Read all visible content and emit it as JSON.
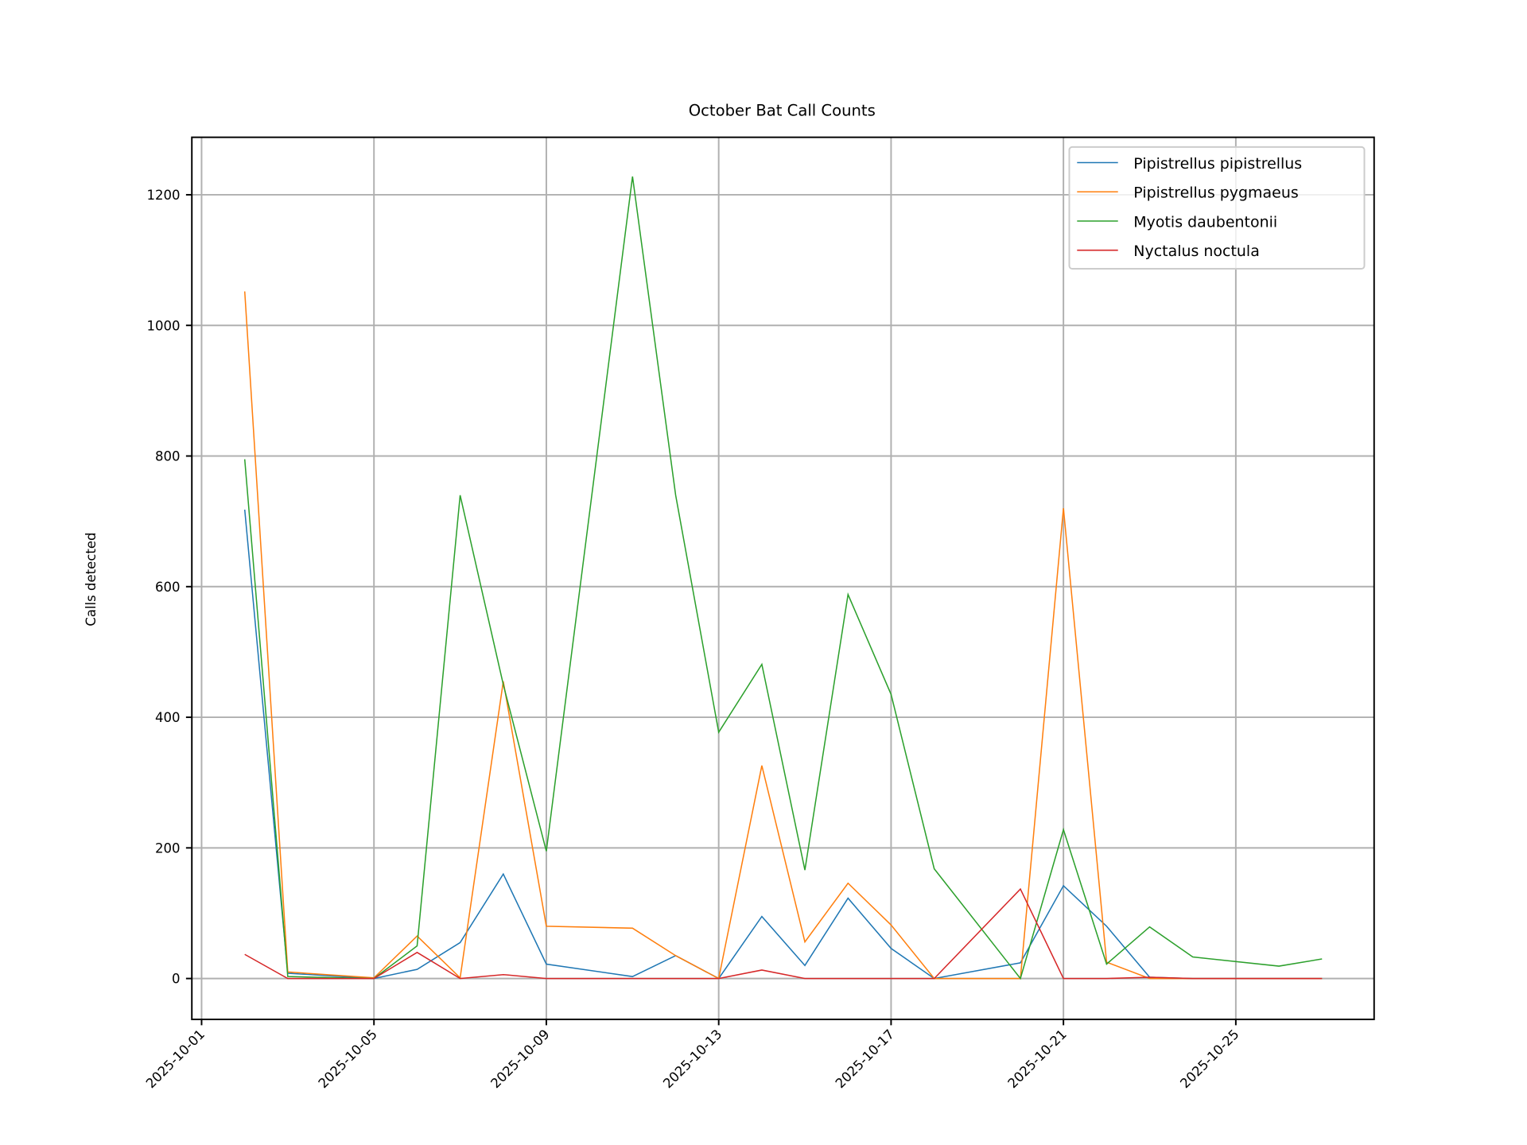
{
  "chart_data": {
    "type": "line",
    "title": "October Bat Call Counts",
    "xlabel": "",
    "ylabel": "Calls detected",
    "x": [
      "2025-10-02",
      "2025-10-03",
      "2025-10-05",
      "2025-10-06",
      "2025-10-07",
      "2025-10-08",
      "2025-10-09",
      "2025-10-11",
      "2025-10-12",
      "2025-10-13",
      "2025-10-14",
      "2025-10-15",
      "2025-10-16",
      "2025-10-17",
      "2025-10-18",
      "2025-10-20",
      "2025-10-21",
      "2025-10-22",
      "2025-10-23",
      "2025-10-24",
      "2025-10-26",
      "2025-10-27"
    ],
    "xticks": [
      "2025-10-01",
      "2025-10-05",
      "2025-10-09",
      "2025-10-13",
      "2025-10-17",
      "2025-10-21",
      "2025-10-25"
    ],
    "yticks": [
      0,
      200,
      400,
      600,
      800,
      1000,
      1200
    ],
    "ylim": [
      -63,
      1288
    ],
    "xlim": [
      "2025-09-30T18:00",
      "2025-10-28T05:00"
    ],
    "grid": true,
    "legend_position": "top-right",
    "series": [
      {
        "name": "Pipistrellus pipistrellus",
        "color": "#1f77b4",
        "values": [
          718,
          8,
          0,
          14,
          55,
          160,
          22,
          3,
          35,
          0,
          95,
          20,
          123,
          46,
          0,
          24,
          142,
          80,
          2,
          0,
          0,
          0
        ]
      },
      {
        "name": "Pipistrellus pygmaeus",
        "color": "#ff7f0e",
        "values": [
          1052,
          10,
          1,
          65,
          1,
          455,
          80,
          77,
          35,
          0,
          326,
          56,
          146,
          82,
          0,
          0,
          720,
          25,
          0,
          0,
          0,
          0
        ]
      },
      {
        "name": "Myotis daubentonii",
        "color": "#2ca02c",
        "values": [
          795,
          3,
          0,
          50,
          740,
          450,
          195,
          1228,
          740,
          377,
          481,
          166,
          588,
          435,
          168,
          0,
          228,
          22,
          79,
          33,
          19,
          30
        ]
      },
      {
        "name": "Nyctalus noctula",
        "color": "#d62728",
        "values": [
          37,
          0,
          0,
          40,
          0,
          6,
          0,
          0,
          0,
          0,
          13,
          0,
          0,
          0,
          0,
          137,
          0,
          0,
          2,
          0,
          0,
          0
        ]
      }
    ]
  }
}
